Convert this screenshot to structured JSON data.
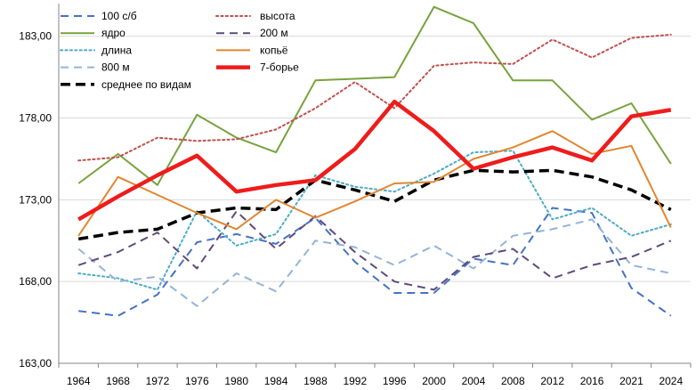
{
  "chart_data": {
    "type": "line",
    "categories": [
      "1964",
      "1968",
      "1972",
      "1976",
      "1980",
      "1984",
      "1988",
      "1992",
      "1996",
      "2000",
      "2004",
      "2008",
      "2012",
      "2016",
      "2021",
      "2024"
    ],
    "ylim": [
      163,
      185
    ],
    "yticks": [
      "163,00",
      "168,00",
      "173,00",
      "178,00",
      "183,00"
    ],
    "ytick_values": [
      163,
      168,
      173,
      178,
      183
    ],
    "grid": true,
    "legend_position": "top-left",
    "series": [
      {
        "name": "100 с/б",
        "color": "#4472c4",
        "dash": "dash",
        "width": 2,
        "values": [
          166.2,
          165.9,
          167.2,
          170.4,
          170.9,
          170.3,
          171.9,
          169.2,
          167.3,
          167.3,
          169.4,
          169.0,
          172.5,
          172.2,
          167.6,
          165.9
        ]
      },
      {
        "name": "ядро",
        "color": "#77a33c",
        "dash": "solid",
        "width": 2,
        "values": [
          174.0,
          175.8,
          173.9,
          178.2,
          176.8,
          175.9,
          180.3,
          180.4,
          180.5,
          184.8,
          183.8,
          180.3,
          180.3,
          177.9,
          178.9,
          175.2
        ]
      },
      {
        "name": "длина",
        "color": "#4bacc6",
        "dash": "dot",
        "width": 2,
        "values": [
          168.5,
          168.2,
          167.5,
          172.3,
          170.2,
          170.9,
          174.5,
          173.8,
          173.5,
          174.6,
          175.9,
          176.0,
          171.8,
          172.5,
          170.8,
          171.5
        ]
      },
      {
        "name": "800 м",
        "color": "#95b3d7",
        "dash": "dash",
        "width": 2,
        "values": [
          170.0,
          168.0,
          168.3,
          166.5,
          168.5,
          167.4,
          170.5,
          170.1,
          169.0,
          170.2,
          168.8,
          170.8,
          171.2,
          171.8,
          169.0,
          168.5
        ]
      },
      {
        "name": "среднее по видам",
        "color": "#000000",
        "dash": "longdash",
        "width": 3.5,
        "values": [
          170.6,
          171.0,
          171.2,
          172.2,
          172.5,
          172.4,
          174.2,
          173.6,
          172.9,
          174.2,
          174.8,
          174.7,
          174.8,
          174.4,
          173.6,
          172.4
        ]
      },
      {
        "name": "высота",
        "color": "#c0504d",
        "dash": "dot",
        "width": 2,
        "values": [
          175.4,
          175.6,
          176.8,
          176.6,
          176.7,
          177.3,
          178.6,
          180.2,
          178.6,
          181.2,
          181.4,
          181.3,
          182.8,
          181.7,
          182.9,
          183.1
        ]
      },
      {
        "name": "200 м",
        "color": "#604a7b",
        "dash": "dash",
        "width": 2,
        "values": [
          169.0,
          169.8,
          171.0,
          168.8,
          172.3,
          170.0,
          172.0,
          169.8,
          168.0,
          167.5,
          169.5,
          170.0,
          168.2,
          169.0,
          169.5,
          170.5
        ]
      },
      {
        "name": "копьё",
        "color": "#e2862f",
        "dash": "solid",
        "width": 2,
        "values": [
          170.8,
          174.4,
          173.3,
          172.2,
          171.2,
          173.0,
          171.9,
          172.9,
          174.0,
          174.1,
          175.5,
          176.2,
          177.2,
          175.8,
          176.3,
          171.3
        ]
      },
      {
        "name": "7-борье",
        "color": "#ee1c1c",
        "dash": "solid",
        "width": 4.5,
        "values": [
          171.8,
          173.2,
          174.5,
          175.7,
          173.5,
          173.9,
          174.2,
          176.1,
          179.0,
          177.2,
          174.9,
          175.6,
          176.2,
          175.4,
          178.1,
          178.5
        ]
      }
    ],
    "legend_left_column": [
      "100 с/б",
      "ядро",
      "длина",
      "800 м",
      "среднее по видам"
    ],
    "legend_right_column": [
      "высота",
      "200 м",
      "копьё",
      "7-борье"
    ]
  }
}
